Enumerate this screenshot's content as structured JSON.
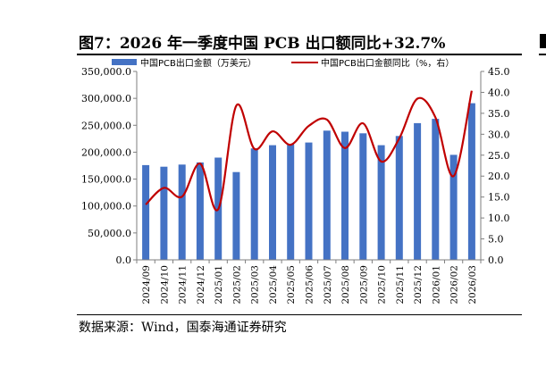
{
  "page": {
    "title": "图7：2026 年一季度中国 PCB 出口额同比+32.7%",
    "source": "数据来源：Wind，国泰海通证券研究"
  },
  "colors": {
    "bar": "#4472C4",
    "line": "#C00000",
    "axis": "#7F7F7F"
  },
  "chart_data": {
    "type": "bar",
    "categories": [
      "2024/09",
      "2024/10",
      "2024/11",
      "2024/12",
      "2025/01",
      "2025/02",
      "2025/03",
      "2025/04",
      "2025/05",
      "2025/06",
      "2025/07",
      "2025/08",
      "2025/09",
      "2025/10",
      "2025/11",
      "2025/12",
      "2026/01",
      "2026/02",
      "2026/03"
    ],
    "series": [
      {
        "name": "中国PCB出口金额（万美元）",
        "type": "bar",
        "axis": "left",
        "values": [
          176000,
          173000,
          177000,
          181000,
          190000,
          163000,
          207000,
          213000,
          215000,
          218000,
          240000,
          238000,
          235000,
          213000,
          230000,
          254000,
          262000,
          195000,
          291000
        ]
      },
      {
        "name": "中国PCB出口金额同比（%，右）",
        "type": "line",
        "axis": "right",
        "values": [
          13.2,
          17.2,
          15.1,
          23.0,
          12.1,
          36.8,
          26.5,
          30.7,
          27.5,
          32.0,
          33.5,
          26.7,
          32.6,
          23.5,
          29.0,
          38.5,
          34.0,
          20.0,
          40.4
        ]
      }
    ],
    "y_left": {
      "min": 0,
      "max": 350000,
      "ticks": [
        "0.0",
        "50,000.0",
        "100,000.0",
        "150,000.0",
        "200,000.0",
        "250,000.0",
        "300,000.0",
        "350,000.0"
      ]
    },
    "y_right": {
      "min": 0,
      "max": 45,
      "ticks": [
        "0.0",
        "5.0",
        "10.0",
        "15.0",
        "20.0",
        "25.0",
        "30.0",
        "35.0",
        "40.0",
        "45.0"
      ]
    },
    "grid": false,
    "legend_position": "top"
  }
}
